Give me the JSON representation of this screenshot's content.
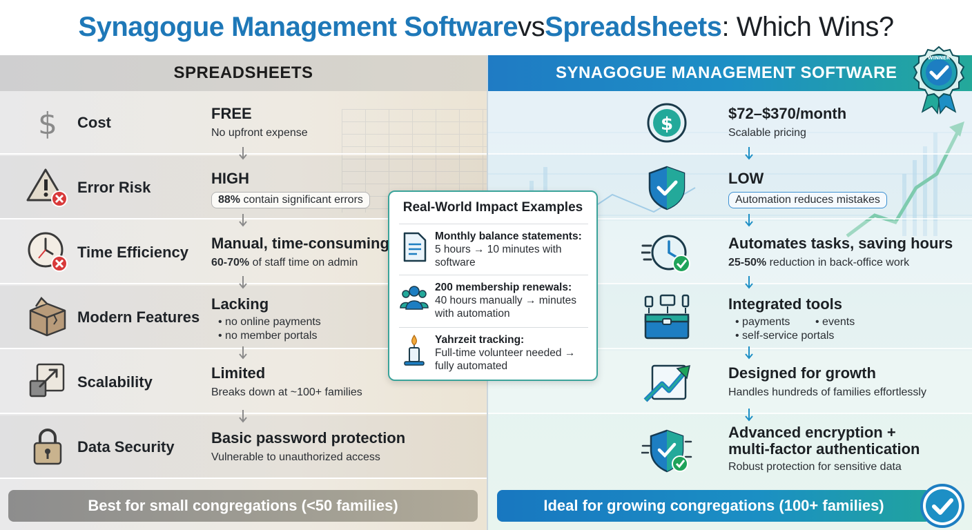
{
  "title": {
    "part1": "Synagogue Management Software",
    "part2": " vs ",
    "part3": "Spreadsheets",
    "part4": ": Which Wins?"
  },
  "left": {
    "header": "SPREADSHEETS",
    "rows": [
      {
        "label": "Cost",
        "main": "FREE",
        "sub": "No upfront expense",
        "icon": "dollar-icon"
      },
      {
        "label": "Error Risk",
        "main": "HIGH",
        "sub_bold": "88%",
        "sub": " contain significant errors",
        "icon": "warning-icon"
      },
      {
        "label": "Time Efficiency",
        "main": "Manual, time-consuming",
        "sub_bold": "60-70%",
        "sub": " of staff time on admin",
        "icon": "clock-icon"
      },
      {
        "label": "Modern Features",
        "main": "Lacking",
        "bullets": [
          "no online payments",
          "no member portals"
        ],
        "icon": "broken-box-icon"
      },
      {
        "label": "Scalability",
        "main": "Limited",
        "sub": "Breaks down at ~100+ families",
        "icon": "resize-icon"
      },
      {
        "label": "Data Security",
        "main": "Basic password protection",
        "sub": "Vulnerable to unauthorized access",
        "icon": "padlock-icon"
      }
    ],
    "banner": "Best for small congregations (<50 families)"
  },
  "right": {
    "header": "SYNAGOGUE MANAGEMENT SOFTWARE",
    "seal_text": "WINNER",
    "rows": [
      {
        "main": "$72–$370/month",
        "sub": "Scalable pricing",
        "icon": "dollar-coin-icon"
      },
      {
        "main": "LOW",
        "sub": "Automation reduces mistakes",
        "icon": "shield-check-icon"
      },
      {
        "main": "Automates tasks, saving hours",
        "sub_bold": "25-50%",
        "sub": " reduction in back-office work",
        "icon": "fast-clock-icon"
      },
      {
        "main": "Integrated tools",
        "bullets": [
          "payments",
          "events",
          "self-service portals"
        ],
        "icon": "toolbox-devices-icon"
      },
      {
        "main": "Designed for growth",
        "sub": "Handles hundreds of families effortlessly",
        "icon": "growth-chart-icon"
      },
      {
        "main1": "Advanced encryption +",
        "main2": "multi-factor authentication",
        "sub": "Robust protection for sensitive data",
        "icon": "secure-shield-icon"
      }
    ],
    "banner": "Ideal for growing congregations (100+ families)"
  },
  "card": {
    "title": "Real-World Impact Examples",
    "items": [
      {
        "head": "Monthly balance statements:",
        "line1": "5 hours → 10 minutes with",
        "line2": "software",
        "icon": "document-icon"
      },
      {
        "head": "200 membership renewals:",
        "line1": "40 hours manually → minutes",
        "line2": "with automation",
        "icon": "people-icon"
      },
      {
        "head": "Yahrzeit tracking:",
        "line1": "Full-time volunteer needed →",
        "line2": "fully automated",
        "icon": "candle-icon"
      }
    ]
  },
  "colors": {
    "title_blue": "#1e78b8",
    "accent_teal": "#23a99a",
    "risk_red": "#d83a3a",
    "ok_green": "#1fa35a"
  }
}
